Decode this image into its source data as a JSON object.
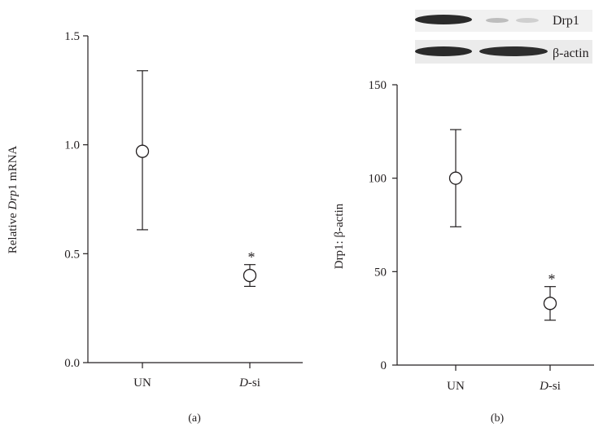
{
  "chart_data": [
    {
      "type": "scatter",
      "panel_label": "(a)",
      "ylabel_prefix": "Relative ",
      "ylabel_italic": "Drp",
      "ylabel_suffix": "1 mRNA",
      "ylim": [
        0,
        1.5
      ],
      "yticks": [
        "0.0",
        "0.5",
        "1.0",
        "1.5"
      ],
      "categories": [
        {
          "prefix": "UN",
          "italic": "",
          "suffix": ""
        },
        {
          "prefix": "",
          "italic": "D",
          "suffix": "-si"
        }
      ],
      "points": [
        {
          "y": 0.97,
          "err_low": 0.61,
          "err_high": 1.34,
          "annotation": ""
        },
        {
          "y": 0.4,
          "err_low": 0.35,
          "err_high": 0.45,
          "annotation": "*"
        }
      ]
    },
    {
      "type": "scatter",
      "panel_label": "(b)",
      "ylabel": "Drp1: β-actin",
      "ylim": [
        0,
        150
      ],
      "yticks": [
        "0",
        "50",
        "100",
        "150"
      ],
      "categories": [
        {
          "prefix": "UN",
          "italic": "",
          "suffix": ""
        },
        {
          "prefix": "",
          "italic": "D",
          "suffix": "-si"
        }
      ],
      "points": [
        {
          "y": 100,
          "err_low": 74,
          "err_high": 126,
          "annotation": ""
        },
        {
          "y": 33,
          "err_low": 24,
          "err_high": 42,
          "annotation": "*"
        }
      ],
      "blot_labels": [
        "Drp1",
        "β-actin"
      ]
    }
  ]
}
